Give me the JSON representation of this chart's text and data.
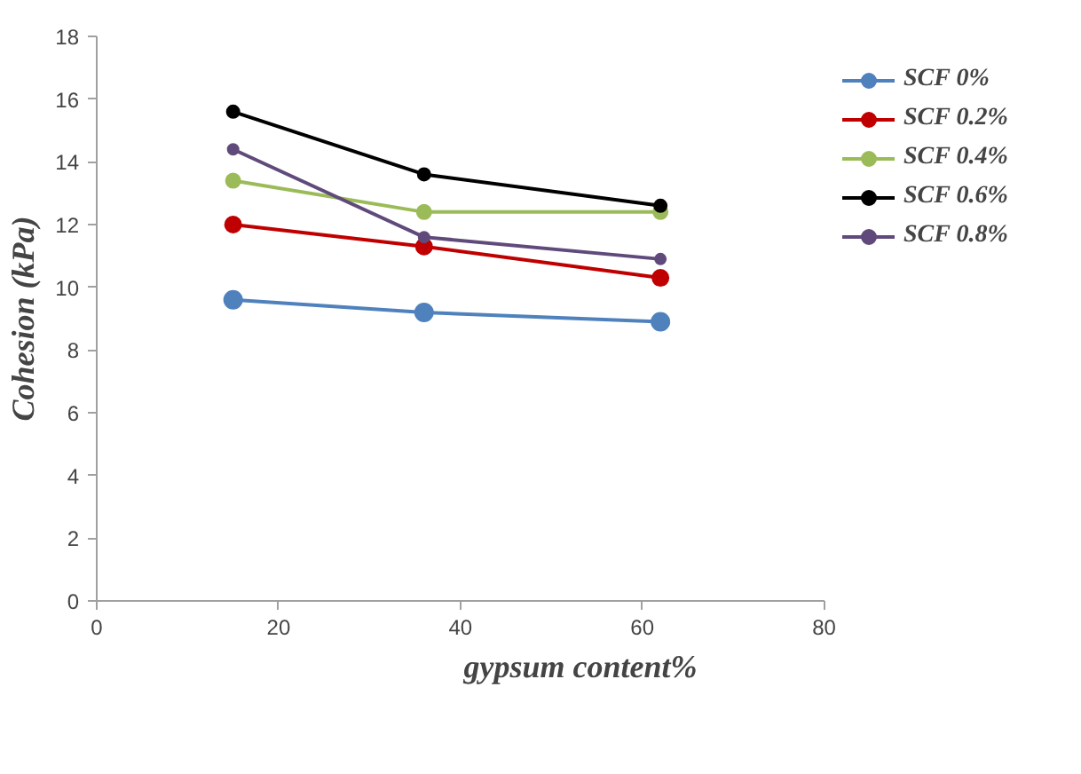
{
  "chart_data": {
    "type": "line",
    "xlabel": "gypsum content%",
    "ylabel": "Cohesion (kPa)",
    "x": [
      15,
      36,
      62
    ],
    "series": [
      {
        "name": "SCF 0%",
        "color": "#4f81bd",
        "values": [
          9.6,
          9.2,
          8.9
        ]
      },
      {
        "name": "SCF 0.2%",
        "color": "#c00000",
        "values": [
          12.0,
          11.3,
          10.3
        ]
      },
      {
        "name": "SCF 0.4%",
        "color": "#9bbb59",
        "values": [
          13.4,
          12.4,
          12.4
        ]
      },
      {
        "name": "SCF 0.6%",
        "color": "#000000",
        "values": [
          15.6,
          13.6,
          12.6
        ]
      },
      {
        "name": "SCF 0.8%",
        "color": "#604a7b",
        "values": [
          14.4,
          11.6,
          10.9
        ]
      }
    ],
    "xlim": [
      0,
      80
    ],
    "xticks": [
      0,
      20,
      40,
      60,
      80
    ],
    "ylim": [
      0,
      18
    ],
    "yticks": [
      0,
      2,
      4,
      6,
      8,
      10,
      12,
      14,
      16,
      18
    ],
    "grid": false,
    "legend": "right",
    "marker": "circle",
    "line_style": "solid"
  }
}
